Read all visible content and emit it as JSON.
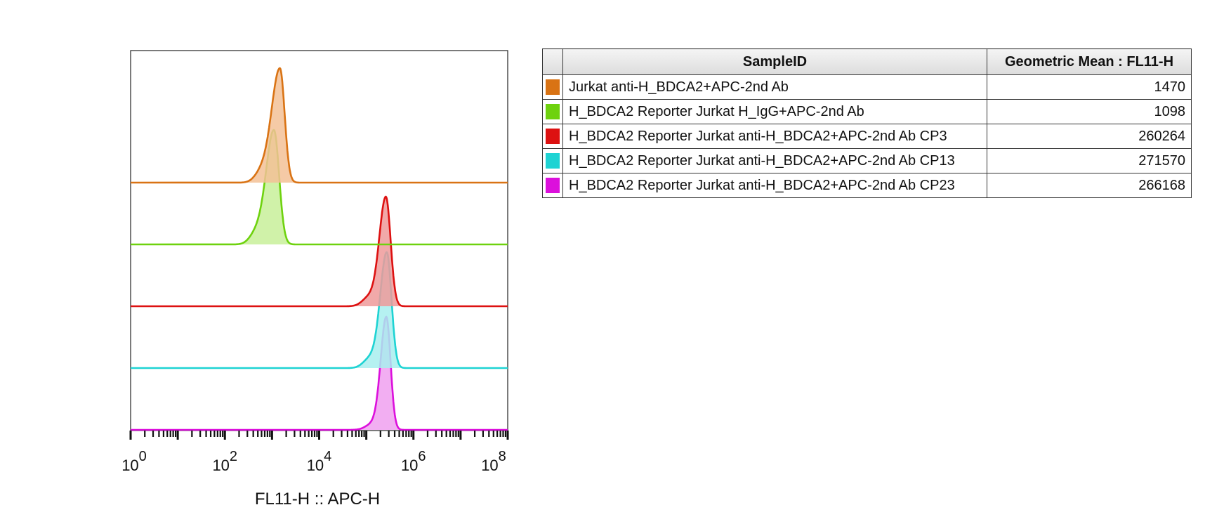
{
  "chart_data": {
    "type": "histogram-offset",
    "xlabel": "FL11-H :: APC-H",
    "x_scale": "log",
    "xlim": [
      1,
      100000000
    ],
    "x_ticks": [
      {
        "base": "10",
        "exp": "0",
        "value": 1
      },
      {
        "base": "10",
        "exp": "2",
        "value": 100
      },
      {
        "base": "10",
        "exp": "4",
        "value": 10000
      },
      {
        "base": "10",
        "exp": "6",
        "value": 1000000
      },
      {
        "base": "10",
        "exp": "8",
        "value": 100000000
      }
    ],
    "legend_position": "right",
    "series": [
      {
        "name": "Jurkat anti-H_BDCA2+APC-2nd Ab",
        "color": "#d97314",
        "fill": "#f3c197",
        "geometric_mean": "1470",
        "peak_x": 1470
      },
      {
        "name": "H_BDCA2 Reporter Jurkat H_IgG+APC-2nd Ab",
        "color": "#6ed20e",
        "fill": "#c8f09a",
        "geometric_mean": "1098",
        "peak_x": 1098
      },
      {
        "name": "H_BDCA2 Reporter Jurkat anti-H_BDCA2+APC-2nd Ab CP3",
        "color": "#dd1111",
        "fill": "#ee9a9a",
        "geometric_mean": "260264",
        "peak_x": 260264
      },
      {
        "name": "H_BDCA2 Reporter Jurkat anti-H_BDCA2+APC-2nd Ab CP13",
        "color": "#1ed3d3",
        "fill": "#a8eeee",
        "geometric_mean": "271570",
        "peak_x": 271570
      },
      {
        "name": "H_BDCA2 Reporter Jurkat anti-H_BDCA2+APC-2nd Ab CP23",
        "color": "#dc10dc",
        "fill": "#f0a0f0",
        "geometric_mean": "266168",
        "peak_x": 266168
      }
    ]
  },
  "table": {
    "header_sample": "SampleID",
    "header_value": "Geometric Mean : FL11-H"
  }
}
